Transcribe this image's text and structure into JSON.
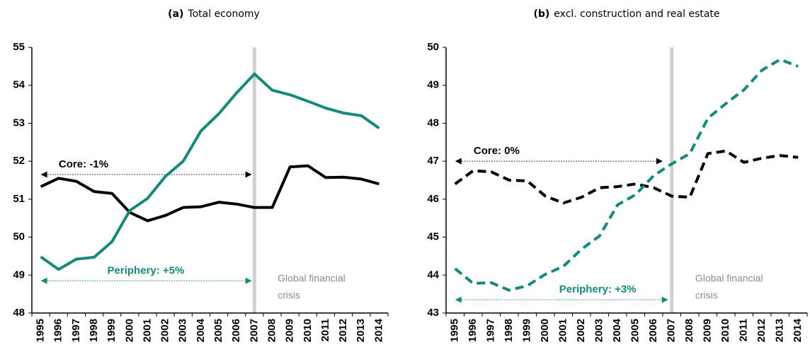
{
  "chart_data": [
    {
      "type": "line",
      "panel_label": "(a)",
      "title": "Total economy",
      "categories": [
        "1995",
        "1996",
        "1997",
        "1998",
        "1999",
        "2000",
        "2001",
        "2002",
        "2003",
        "2004",
        "2005",
        "2006",
        "2007",
        "2008",
        "2009",
        "2010",
        "2011",
        "2012",
        "2013",
        "2014"
      ],
      "line_style": "solid",
      "series": [
        {
          "label": "Core: -1%",
          "color": "#000000",
          "values": [
            51.33,
            51.55,
            51.47,
            51.2,
            51.15,
            50.65,
            50.43,
            50.57,
            50.78,
            50.8,
            50.92,
            50.87,
            50.78,
            50.78,
            51.85,
            51.88,
            51.57,
            51.58,
            51.53,
            51.4
          ]
        },
        {
          "label": "Periphery: +5%",
          "color": "#138b79",
          "values": [
            49.48,
            49.15,
            49.42,
            49.47,
            49.88,
            50.7,
            51.02,
            51.6,
            52.0,
            52.8,
            53.25,
            53.8,
            54.3,
            53.87,
            53.75,
            53.58,
            53.4,
            53.27,
            53.2,
            52.87
          ]
        }
      ],
      "ylim": [
        48,
        55
      ],
      "yticks": [
        48,
        49,
        50,
        51,
        52,
        53,
        54,
        55
      ],
      "crisis_label": [
        "Global financial",
        "crisis"
      ]
    },
    {
      "type": "line",
      "panel_label": "(b)",
      "title": "excl. construction and real estate",
      "categories": [
        "1995",
        "1996",
        "1997",
        "1998",
        "1999",
        "2000",
        "2001",
        "2002",
        "2003",
        "2004",
        "2005",
        "2006",
        "2007",
        "2008",
        "2009",
        "2010",
        "2011",
        "2012",
        "2013",
        "2014"
      ],
      "line_style": "dashed",
      "series": [
        {
          "label": "Core: 0%",
          "color": "#000000",
          "values": [
            46.4,
            46.75,
            46.72,
            46.5,
            46.48,
            46.08,
            45.9,
            46.05,
            46.3,
            46.33,
            46.4,
            46.3,
            46.08,
            46.05,
            47.2,
            47.27,
            46.97,
            47.08,
            47.15,
            47.1
          ]
        },
        {
          "label": "Periphery: +3%",
          "color": "#138b79",
          "values": [
            44.17,
            43.78,
            43.8,
            43.6,
            43.72,
            44.02,
            44.23,
            44.68,
            45.03,
            45.85,
            46.12,
            46.62,
            46.93,
            47.2,
            48.13,
            48.52,
            48.88,
            49.4,
            49.68,
            49.5
          ]
        }
      ],
      "ylim": [
        43,
        50
      ],
      "yticks": [
        43,
        44,
        45,
        46,
        47,
        48,
        49,
        50
      ],
      "crisis_label": [
        "Global financial",
        "crisis"
      ]
    }
  ]
}
